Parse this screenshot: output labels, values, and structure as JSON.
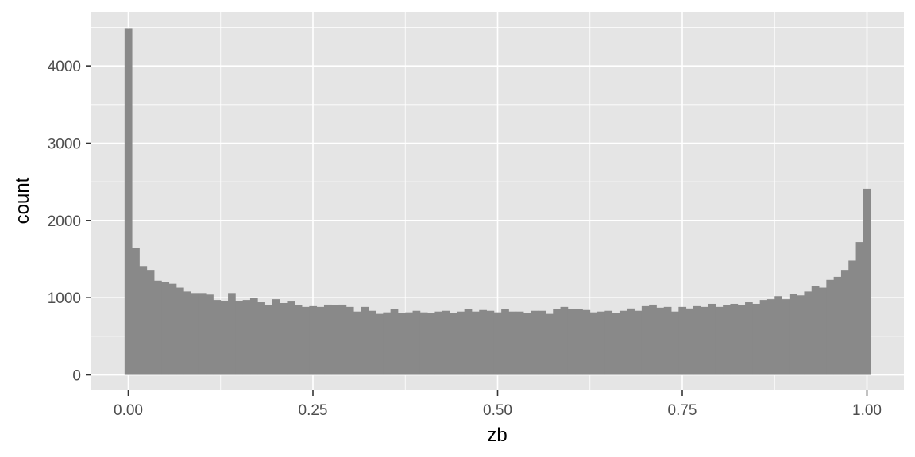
{
  "chart_data": {
    "type": "bar",
    "title": "",
    "xlabel": "zb",
    "ylabel": "count",
    "xlim": [
      -0.05,
      1.05
    ],
    "ylim": [
      -200,
      4700
    ],
    "bin_width": 0.01,
    "x_ticks": [
      0,
      0.25,
      0.5,
      0.75,
      1.0
    ],
    "x_tick_labels": [
      "0.00",
      "0.25",
      "0.50",
      "0.75",
      "1.00"
    ],
    "y_ticks": [
      0,
      1000,
      2000,
      3000,
      4000
    ],
    "y_tick_labels": [
      "0",
      "1000",
      "2000",
      "3000",
      "4000"
    ],
    "grid": true,
    "colors": {
      "panel": "#e5e5e5",
      "bar": "#898989",
      "grid": "#ffffff"
    },
    "bins_start": 0.0,
    "values": [
      4490,
      1640,
      1410,
      1360,
      1220,
      1200,
      1180,
      1130,
      1080,
      1060,
      1060,
      1040,
      970,
      960,
      1060,
      960,
      970,
      1000,
      940,
      900,
      980,
      930,
      950,
      900,
      880,
      890,
      880,
      910,
      900,
      910,
      880,
      820,
      880,
      830,
      790,
      810,
      850,
      800,
      810,
      830,
      810,
      800,
      820,
      830,
      800,
      820,
      850,
      820,
      840,
      830,
      810,
      850,
      820,
      820,
      800,
      830,
      830,
      790,
      850,
      880,
      850,
      850,
      840,
      810,
      820,
      830,
      800,
      830,
      860,
      830,
      890,
      910,
      870,
      880,
      820,
      880,
      860,
      890,
      880,
      920,
      880,
      900,
      920,
      900,
      940,
      920,
      970,
      980,
      1020,
      980,
      1050,
      1030,
      1080,
      1150,
      1130,
      1230,
      1270,
      1360,
      1480,
      1720,
      2410
    ]
  }
}
